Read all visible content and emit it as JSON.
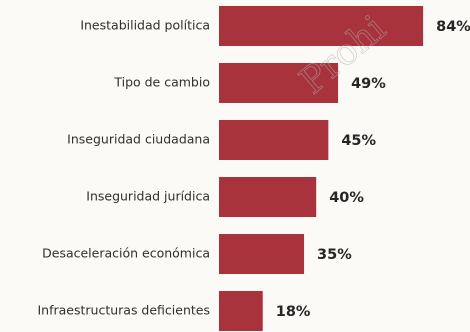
{
  "chart_data": {
    "type": "bar",
    "orientation": "horizontal",
    "categories": [
      "Inestabilidad política",
      "Tipo de cambio",
      "Inseguridad ciudadana",
      "Inseguridad jurídica",
      "Desaceleración económica",
      "Infraestructuras deficientes"
    ],
    "values": [
      84,
      49,
      45,
      40,
      35,
      18
    ],
    "value_labels": [
      "84%",
      "49%",
      "45%",
      "40%",
      "35%",
      "18%"
    ],
    "unit": "%",
    "xlim": [
      0,
      100
    ],
    "grid": false,
    "legend": "none",
    "bar_color": "#a8333d"
  },
  "watermark": {
    "text": "Prohi"
  }
}
